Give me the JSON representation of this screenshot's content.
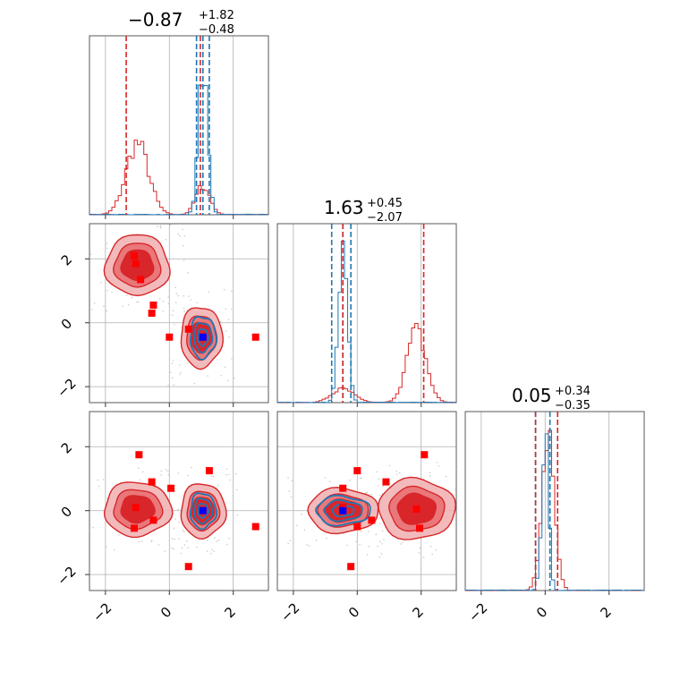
{
  "colors": {
    "red": "#d62728",
    "blue": "#1f77b4",
    "marker_red": "#ff0000",
    "marker_blue": "#0000ff",
    "fill_light": "#f2b3b5",
    "fill_dark": "#d9262b"
  },
  "chart_data": {
    "type": "corner",
    "grid": true,
    "axis_range": [
      -2.5,
      3.1
    ],
    "ticks": [
      -2,
      0,
      2
    ],
    "tick_labels": [
      "−2",
      "0",
      "2"
    ],
    "parameters": [
      {
        "title_main": "−0.87",
        "title_sup": "+1.82",
        "title_sub": "−0.48",
        "red_quantiles": [
          -1.35,
          0.97
        ],
        "blue_quantiles": [
          0.85,
          1.05,
          1.25
        ]
      },
      {
        "title_main": "1.63",
        "title_sup": "+0.45",
        "title_sub": "−2.07",
        "red_quantiles": [
          -0.45,
          2.08
        ],
        "blue_quantiles": [
          -0.8,
          -0.45,
          -0.2
        ]
      },
      {
        "title_main": "0.05",
        "title_sup": "+0.34",
        "title_sub": "−0.35",
        "red_quantiles": [
          -0.3,
          0.39
        ],
        "blue_quantiles": [
          -0.3,
          0.15
        ]
      }
    ],
    "hist": {
      "p0": {
        "red": [
          {
            "c": -1.0,
            "s": 0.35,
            "a": 0.42
          },
          {
            "c": 1.05,
            "s": 0.22,
            "a": 0.17
          }
        ],
        "blue": [
          {
            "c": 1.05,
            "s": 0.14,
            "a": 0.88
          }
        ]
      },
      "p1": {
        "red": [
          {
            "c": 1.85,
            "s": 0.3,
            "a": 0.42
          },
          {
            "c": -0.45,
            "s": 0.35,
            "a": 0.08
          }
        ],
        "blue": [
          {
            "c": -0.45,
            "s": 0.14,
            "a": 0.92
          }
        ]
      },
      "p2": {
        "red": [
          {
            "c": 0.1,
            "s": 0.2,
            "a": 0.85
          }
        ],
        "blue": [
          {
            "c": 0.0,
            "s": 0.11,
            "a": 0.92
          }
        ]
      }
    },
    "contours": {
      "p1_vs_p0": {
        "red_modes": [
          {
            "x": -1.0,
            "y": 1.8,
            "rx": 1.0,
            "ry": 0.95
          },
          {
            "x": 1.0,
            "y": -0.45,
            "rx": 0.65,
            "ry": 0.95
          }
        ],
        "blue_modes": [
          {
            "x": 1.05,
            "y": -0.45,
            "rx": 0.4,
            "ry": 0.65
          }
        ]
      },
      "p2_vs_p0": {
        "red_modes": [
          {
            "x": -1.0,
            "y": 0.05,
            "rx": 1.05,
            "ry": 0.85
          },
          {
            "x": 1.05,
            "y": 0.0,
            "rx": 0.7,
            "ry": 0.85
          }
        ],
        "blue_modes": [
          {
            "x": 1.05,
            "y": 0.0,
            "rx": 0.4,
            "ry": 0.55
          }
        ]
      },
      "p2_vs_p1": {
        "red_modes": [
          {
            "x": -0.45,
            "y": 0.0,
            "rx": 1.1,
            "ry": 0.7
          },
          {
            "x": 1.85,
            "y": 0.05,
            "rx": 1.2,
            "ry": 0.95
          }
        ],
        "blue_modes": [
          {
            "x": -0.45,
            "y": 0.0,
            "rx": 0.85,
            "ry": 0.45
          }
        ]
      }
    },
    "red_markers": {
      "p1_vs_p0": [
        [
          -1.1,
          2.1
        ],
        [
          -1.05,
          1.85
        ],
        [
          -0.9,
          1.35
        ],
        [
          -0.5,
          0.55
        ],
        [
          -0.55,
          0.3
        ],
        [
          0.0,
          -0.45
        ],
        [
          0.6,
          -0.2
        ],
        [
          1.05,
          -0.45
        ],
        [
          2.7,
          -0.45
        ]
      ],
      "p2_vs_p0": [
        [
          -0.95,
          1.75
        ],
        [
          -0.55,
          0.9
        ],
        [
          0.05,
          0.7
        ],
        [
          1.25,
          1.25
        ],
        [
          -1.05,
          0.1
        ],
        [
          -0.5,
          -0.3
        ],
        [
          -1.1,
          -0.55
        ],
        [
          0.6,
          -1.75
        ],
        [
          2.7,
          -0.5
        ]
      ],
      "p2_vs_p1": [
        [
          0.0,
          1.25
        ],
        [
          -0.45,
          0.7
        ],
        [
          0.9,
          0.9
        ],
        [
          2.1,
          1.75
        ],
        [
          -0.45,
          0.1
        ],
        [
          0.45,
          -0.3
        ],
        [
          0.0,
          -0.5
        ],
        [
          1.85,
          0.05
        ],
        [
          -0.2,
          -1.75
        ],
        [
          1.95,
          -0.55
        ]
      ]
    },
    "blue_markers": {
      "p1_vs_p0": [
        [
          1.05,
          -0.45
        ]
      ],
      "p2_vs_p0": [
        [
          1.05,
          0.0
        ]
      ],
      "p2_vs_p1": [
        [
          -0.45,
          0.0
        ]
      ]
    }
  }
}
